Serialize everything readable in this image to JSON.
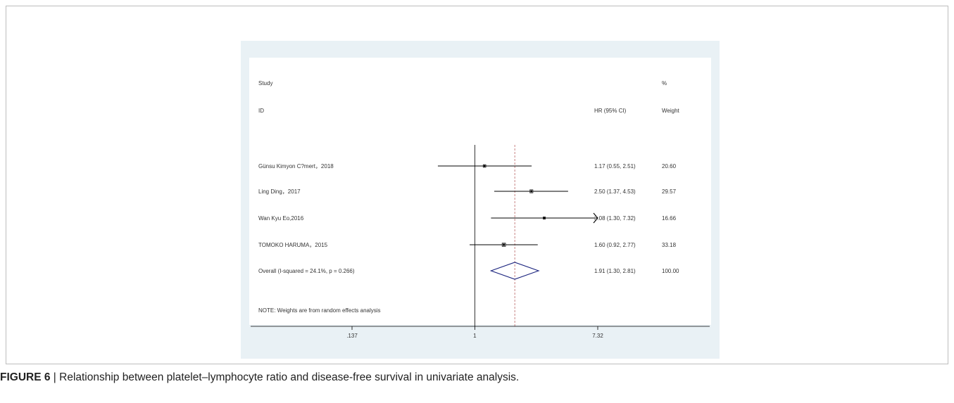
{
  "caption": {
    "label": "FIGURE 6",
    "separator": " | ",
    "text": "Relationship between platelet–lymphocyte ratio and disease-free survival in univariate analysis."
  },
  "chart_data": {
    "type": "forest",
    "headers": {
      "study_line1": "Study",
      "study_line2": "ID",
      "effect": "HR (95% CI)",
      "weight_line1": "%",
      "weight_line2": "Weight"
    },
    "x_scale": "log",
    "x_range": [
      0.137,
      7.32
    ],
    "null_value": 1,
    "x_ticks": [
      {
        "value": 0.137,
        "label": ".137"
      },
      {
        "value": 1,
        "label": "1"
      },
      {
        "value": 7.32,
        "label": "7.32"
      }
    ],
    "studies": [
      {
        "id": "Günsu Kimyon C?mert，2018",
        "hr": 1.17,
        "lower": 0.55,
        "upper": 2.51,
        "ci_text": "1.17 (0.55, 2.51)",
        "weight": "20.60"
      },
      {
        "id": "Ling Ding，2017",
        "hr": 2.5,
        "lower": 1.37,
        "upper": 4.53,
        "ci_text": "2.50 (1.37, 4.53)",
        "weight": "29.57"
      },
      {
        "id": "Wan Kyu Eo,2016",
        "hr": 3.08,
        "lower": 1.3,
        "upper": 7.32,
        "ci_text": "3.08 (1.30, 7.32)",
        "weight": "16.66",
        "arrow_right": true
      },
      {
        "id": "TOMOKO HARUMA，2015",
        "hr": 1.6,
        "lower": 0.92,
        "upper": 2.77,
        "ci_text": "1.60 (0.92, 2.77)",
        "weight": "33.18"
      }
    ],
    "overall": {
      "id": "Overall  (I-squared = 24.1%, p = 0.266)",
      "hr": 1.91,
      "lower": 1.3,
      "upper": 2.81,
      "ci_text": "1.91 (1.30, 2.81)",
      "weight": "100.00"
    },
    "note": "NOTE: Weights are from random effects analysis",
    "colors": {
      "panel": "#e9f1f5",
      "diamond": "#1a237e",
      "line": "#000000",
      "dashed": "#b05050"
    }
  }
}
